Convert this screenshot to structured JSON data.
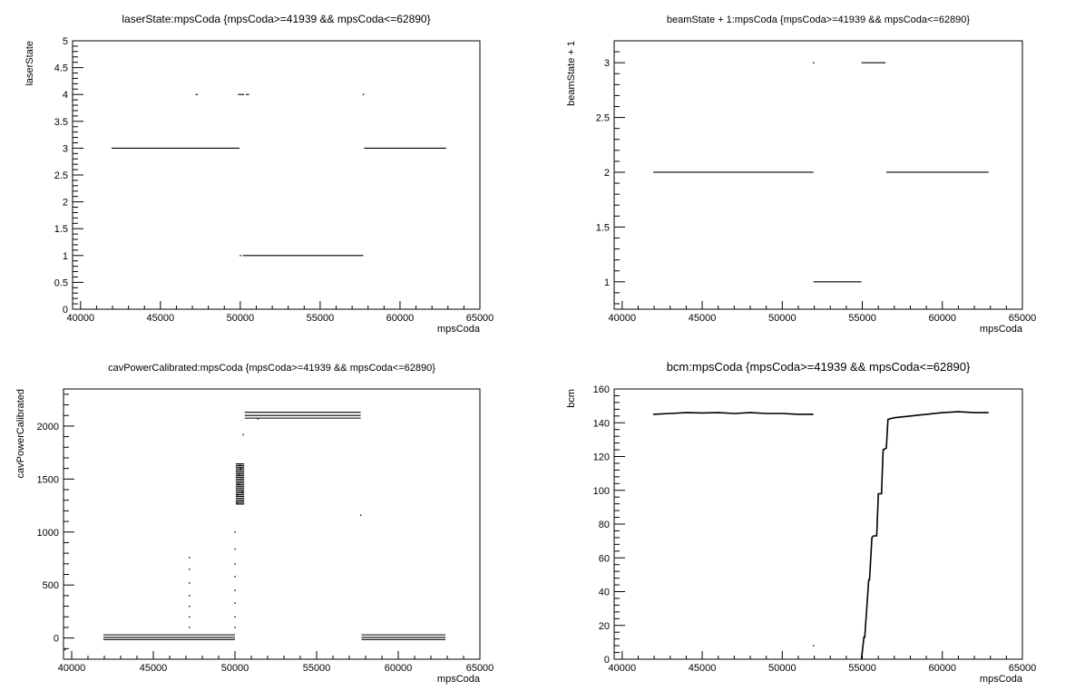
{
  "chart_data": [
    {
      "type": "scatter",
      "title": "laserState:mpsCoda {mpsCoda>=41939 && mpsCoda<=62890}",
      "xlabel": "mpsCoda",
      "ylabel": "laserState",
      "xlim": [
        39500,
        65000
      ],
      "ylim": [
        0,
        5
      ],
      "xticks": [
        40000,
        45000,
        50000,
        55000,
        60000,
        65000
      ],
      "yticks": [
        0,
        0.5,
        1,
        1.5,
        2,
        2.5,
        3,
        3.5,
        4,
        4.5,
        5
      ],
      "grid": false,
      "segments": [
        {
          "x0": 41939,
          "x1": 49950,
          "y": 3
        },
        {
          "x0": 50150,
          "x1": 57700,
          "y": 1
        },
        {
          "x0": 57750,
          "x1": 62890,
          "y": 3
        },
        {
          "x0": 47200,
          "x1": 47350,
          "y": 4
        },
        {
          "x0": 49850,
          "x1": 50250,
          "y": 4
        },
        {
          "x0": 50350,
          "x1": 50550,
          "y": 4
        }
      ],
      "points": [
        {
          "x": 57700,
          "y": 4
        },
        {
          "x": 50000,
          "y": 1
        }
      ]
    },
    {
      "type": "scatter",
      "title": "beamState + 1:mpsCoda {mpsCoda>=41939 && mpsCoda<=62890}",
      "xlabel": "mpsCoda",
      "ylabel": "beamState + 1",
      "xlim": [
        39500,
        65000
      ],
      "ylim": [
        0.75,
        3.2
      ],
      "xticks": [
        40000,
        45000,
        50000,
        55000,
        60000,
        65000
      ],
      "yticks": [
        1,
        1.5,
        2,
        2.5,
        3
      ],
      "grid": false,
      "segments": [
        {
          "x0": 41939,
          "x1": 51950,
          "y": 2
        },
        {
          "x0": 51950,
          "x1": 54950,
          "y": 1
        },
        {
          "x0": 54950,
          "x1": 56450,
          "y": 3
        },
        {
          "x0": 56500,
          "x1": 62890,
          "y": 2
        }
      ],
      "points": [
        {
          "x": 51950,
          "y": 3
        }
      ]
    },
    {
      "type": "scatter",
      "title": "cavPowerCalibrated:mpsCoda {mpsCoda>=41939 && mpsCoda<=62890}",
      "xlabel": "mpsCoda",
      "ylabel": "cavPowerCalibrated",
      "xlim": [
        39500,
        65000
      ],
      "ylim": [
        -200,
        2350
      ],
      "xticks": [
        40000,
        45000,
        50000,
        55000,
        60000,
        65000
      ],
      "yticks": [
        0,
        500,
        1000,
        1500,
        2000
      ],
      "grid": false,
      "segments": [
        {
          "x0": 41939,
          "x1": 50000,
          "y": 30
        },
        {
          "x0": 41939,
          "x1": 50000,
          "y": 5
        },
        {
          "x0": 41939,
          "x1": 50000,
          "y": -15
        },
        {
          "x0": 50600,
          "x1": 57700,
          "y": 2130
        },
        {
          "x0": 50600,
          "x1": 57700,
          "y": 2100
        },
        {
          "x0": 50600,
          "x1": 57700,
          "y": 2075
        },
        {
          "x0": 57750,
          "x1": 62890,
          "y": 30
        },
        {
          "x0": 57750,
          "x1": 62890,
          "y": 5
        },
        {
          "x0": 57750,
          "x1": 62890,
          "y": -15
        }
      ],
      "points": [
        {
          "x": 47200,
          "y": 760
        },
        {
          "x": 47200,
          "y": 650
        },
        {
          "x": 47200,
          "y": 520
        },
        {
          "x": 47200,
          "y": 400
        },
        {
          "x": 47200,
          "y": 300
        },
        {
          "x": 47200,
          "y": 200
        },
        {
          "x": 47200,
          "y": 100
        },
        {
          "x": 50000,
          "y": 1000
        },
        {
          "x": 50000,
          "y": 840
        },
        {
          "x": 50000,
          "y": 700
        },
        {
          "x": 50000,
          "y": 580
        },
        {
          "x": 50000,
          "y": 450
        },
        {
          "x": 50000,
          "y": 330
        },
        {
          "x": 50000,
          "y": 200
        },
        {
          "x": 50000,
          "y": 100
        },
        {
          "x": 50100,
          "y": 1280
        },
        {
          "x": 50150,
          "y": 1350
        },
        {
          "x": 50200,
          "y": 1450
        },
        {
          "x": 50250,
          "y": 1550
        },
        {
          "x": 50300,
          "y": 1640
        },
        {
          "x": 50350,
          "y": 1600
        },
        {
          "x": 50400,
          "y": 1500
        },
        {
          "x": 50450,
          "y": 1380
        },
        {
          "x": 50500,
          "y": 1300
        },
        {
          "x": 50500,
          "y": 1920
        },
        {
          "x": 51400,
          "y": 2070
        },
        {
          "x": 57700,
          "y": 1160
        },
        {
          "x": 39600,
          "y": -110
        }
      ],
      "bands": [
        {
          "x0": 50050,
          "x1": 50500,
          "y0": 1270,
          "y1": 1660
        }
      ]
    },
    {
      "type": "scatter",
      "title": "bcm:mpsCoda {mpsCoda>=41939 && mpsCoda<=62890}",
      "xlabel": "mpsCoda",
      "ylabel": "bcm",
      "xlim": [
        39500,
        65000
      ],
      "ylim": [
        0,
        160
      ],
      "xticks": [
        40000,
        45000,
        50000,
        55000,
        60000,
        65000
      ],
      "yticks": [
        0,
        20,
        40,
        60,
        80,
        100,
        120,
        140,
        160
      ],
      "grid": false,
      "series": [
        {
          "x": [
            41939,
            43000,
            44000,
            45000,
            46000,
            47000,
            48000,
            49000,
            50000,
            51000,
            51950
          ],
          "y": [
            145,
            145.5,
            146,
            145.8,
            146,
            145.5,
            146,
            145.5,
            145.5,
            145,
            145
          ]
        },
        {
          "x": [
            54950,
            55100,
            55150,
            55400,
            55450,
            55600,
            55700,
            55900,
            56000,
            56200,
            56300,
            56500,
            56600,
            57000,
            58000,
            59000,
            60000,
            61000,
            62000,
            62890
          ],
          "y": [
            0,
            13,
            13,
            47,
            47,
            72,
            73,
            73,
            98,
            98,
            124,
            125,
            142,
            143,
            144,
            145,
            146,
            146.5,
            146,
            146
          ]
        }
      ],
      "points": [
        {
          "x": 51950,
          "y": 8
        }
      ]
    }
  ]
}
